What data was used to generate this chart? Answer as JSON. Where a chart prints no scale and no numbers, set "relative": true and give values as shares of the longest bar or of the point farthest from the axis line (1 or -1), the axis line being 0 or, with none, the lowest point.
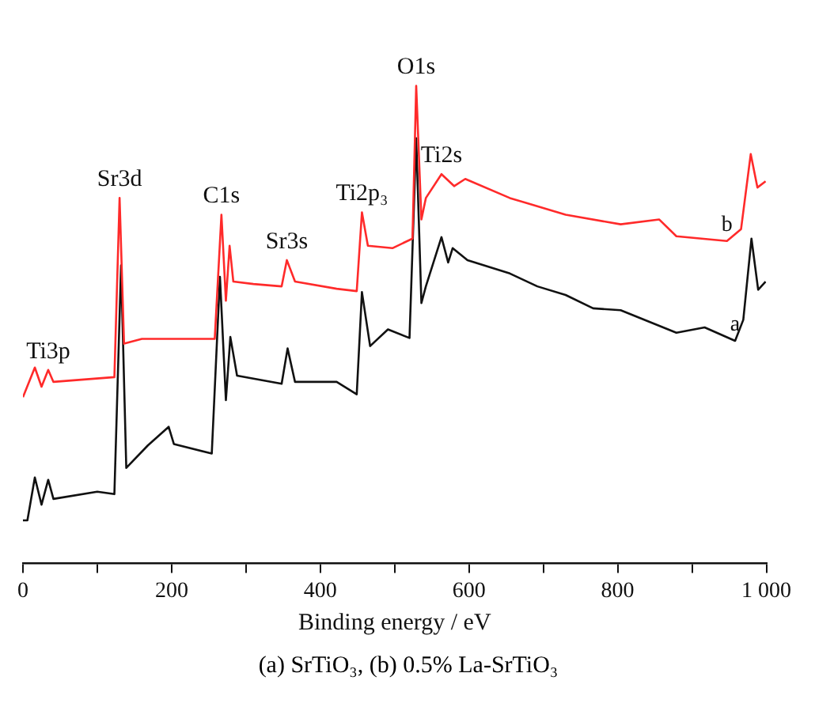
{
  "chart_data": {
    "type": "line",
    "relative": true,
    "xlabel": "Binding energy / eV",
    "xlim": [
      0,
      1000
    ],
    "xticks": [
      0,
      {
        "value": 100,
        "label": null
      },
      200,
      {
        "value": 300,
        "label": null
      },
      400,
      {
        "value": 500,
        "label": null
      },
      600,
      {
        "value": 700,
        "label": null
      },
      800,
      {
        "value": 900,
        "label": null
      },
      {
        "value": 1000,
        "label": "1 000"
      }
    ],
    "legend": false,
    "grid": false,
    "marker": "none",
    "line_style": "solid",
    "series": [
      {
        "name": "b",
        "color": "#ff2a2a",
        "x": [
          0,
          16,
          25,
          34,
          41,
          123,
          130,
          136,
          160,
          258,
          267,
          273,
          278,
          283,
          310,
          348,
          355,
          366,
          422,
          449,
          456,
          464,
          497,
          524,
          529,
          536,
          542,
          563,
          580,
          595,
          655,
          730,
          804,
          856,
          879,
          947,
          966,
          979,
          988,
          999
        ],
        "values": [
          0.348,
          0.41,
          0.37,
          0.405,
          0.38,
          0.39,
          0.765,
          0.46,
          0.47,
          0.47,
          0.73,
          0.55,
          0.665,
          0.59,
          0.585,
          0.58,
          0.635,
          0.59,
          0.575,
          0.57,
          0.735,
          0.665,
          0.66,
          0.68,
          1.0,
          0.72,
          0.765,
          0.815,
          0.79,
          0.805,
          0.765,
          0.73,
          0.71,
          0.72,
          0.685,
          0.675,
          0.7,
          0.857,
          0.787,
          0.8
        ]
      },
      {
        "name": "a",
        "color": "#111111",
        "x": [
          0,
          6,
          16,
          25,
          34,
          41,
          100,
          123,
          132,
          139,
          168,
          196,
          203,
          254,
          265,
          273,
          279,
          288,
          348,
          356,
          366,
          422,
          449,
          456,
          467,
          491,
          520,
          529,
          536,
          542,
          563,
          572,
          578,
          598,
          655,
          692,
          730,
          767,
          804,
          879,
          917,
          958,
          969,
          980,
          989,
          999
        ],
        "values": [
          0.09,
          0.09,
          0.18,
          0.123,
          0.175,
          0.135,
          0.15,
          0.145,
          0.624,
          0.2,
          0.247,
          0.286,
          0.25,
          0.23,
          0.6,
          0.342,
          0.474,
          0.393,
          0.376,
          0.45,
          0.38,
          0.38,
          0.354,
          0.568,
          0.455,
          0.49,
          0.472,
          0.89,
          0.545,
          0.58,
          0.683,
          0.63,
          0.66,
          0.635,
          0.607,
          0.58,
          0.562,
          0.534,
          0.53,
          0.483,
          0.494,
          0.466,
          0.51,
          0.68,
          0.573,
          0.59
        ]
      }
    ],
    "annotations": [
      {
        "text": "Ti3p",
        "x": 34,
        "y": 0.405
      },
      {
        "text": "Sr3d",
        "x": 130,
        "y": 0.765
      },
      {
        "text": "C1s",
        "x": 267,
        "y": 0.73
      },
      {
        "text": "Sr3s",
        "x": 355,
        "y": 0.635
      },
      {
        "text": "Ti2p₃",
        "x": 456,
        "y": 0.735
      },
      {
        "text": "O1s",
        "x": 529,
        "y": 1.0
      },
      {
        "text": "Ti2s",
        "x": 563,
        "y": 0.815
      },
      "(a) SrTiO₃, (b) 0.5% La-SrTiO₃"
    ]
  }
}
